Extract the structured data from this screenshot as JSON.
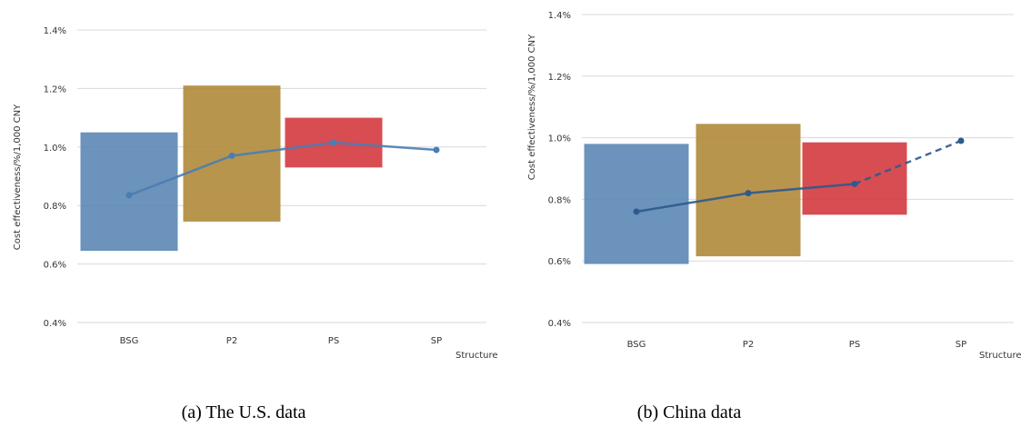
{
  "charts": [
    {
      "caption": "(a) The U.S. data",
      "chart_data": {
        "type": "bar",
        "categories": [
          "BSG",
          "P2",
          "PS",
          "SP"
        ],
        "xlabel": "Structure",
        "ylabel": "Cost effectiveness/%/1,000 CNY",
        "ylim": [
          0.4,
          1.4
        ],
        "yticks": [
          "0.4%",
          "0.6%",
          "0.8%",
          "1.0%",
          "1.2%",
          "1.4%"
        ],
        "grid": true,
        "ranges": [
          {
            "category": "BSG",
            "low": 0.645,
            "high": 1.05,
            "color": "#5b87b4"
          },
          {
            "category": "P2",
            "low": 0.745,
            "high": 1.21,
            "color": "#b08a3a"
          },
          {
            "category": "PS",
            "low": 0.93,
            "high": 1.1,
            "color": "#d33a3f"
          }
        ],
        "line": {
          "values": [
            0.835,
            0.97,
            1.015,
            0.99
          ],
          "color": "#4a7db3",
          "dashed_from_index": null
        }
      }
    },
    {
      "caption": "(b) China data",
      "chart_data": {
        "type": "bar",
        "categories": [
          "BSG",
          "P2",
          "PS",
          "SP"
        ],
        "xlabel": "Structure",
        "ylabel": "Cost effectiveness/%/1,000 CNY",
        "ylim": [
          0.4,
          1.4
        ],
        "yticks": [
          "0.4%",
          "0.6%",
          "0.8%",
          "1.0%",
          "1.2%",
          "1.4%"
        ],
        "grid": true,
        "ranges": [
          {
            "category": "BSG",
            "low": 0.59,
            "high": 0.98,
            "color": "#5b87b4"
          },
          {
            "category": "P2",
            "low": 0.615,
            "high": 1.045,
            "color": "#b08a3a"
          },
          {
            "category": "PS",
            "low": 0.75,
            "high": 0.985,
            "color": "#d33a3f"
          }
        ],
        "line": {
          "values": [
            0.76,
            0.82,
            0.85,
            0.99
          ],
          "color": "#2e5a8c",
          "dashed_from_index": 2
        }
      }
    }
  ]
}
